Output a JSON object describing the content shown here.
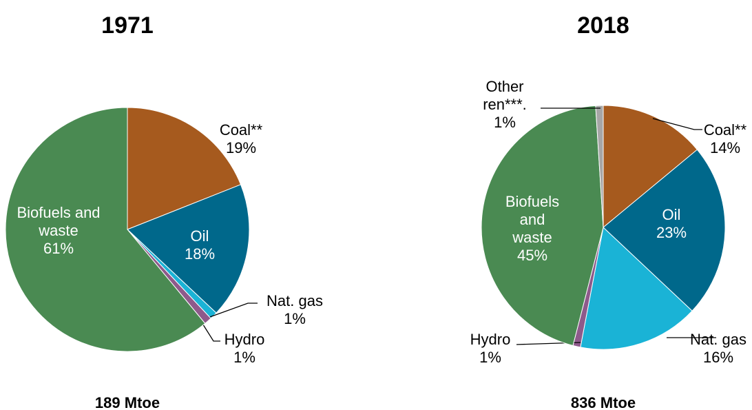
{
  "chart_data": [
    {
      "type": "pie",
      "title": "1971",
      "footer": "189 Mtoe",
      "categories": [
        "Coal**",
        "Oil",
        "Nat. gas",
        "Hydro",
        "Biofuels and waste"
      ],
      "values": [
        19,
        18,
        1,
        1,
        61
      ],
      "value_labels": [
        "19%",
        "18%",
        "1%",
        "1%",
        "61%"
      ],
      "colors": [
        "#a65a1e",
        "#00688b",
        "#1ab3d6",
        "#8e5a8b",
        "#4a8a52"
      ]
    },
    {
      "type": "pie",
      "title": "2018",
      "footer": "836 Mtoe",
      "categories": [
        "Coal**",
        "Oil",
        "Nat. gas",
        "Hydro",
        "Biofuels and waste",
        "Other ren***."
      ],
      "values": [
        14,
        23,
        16,
        1,
        45,
        1
      ],
      "value_labels": [
        "14%",
        "23%",
        "16%",
        "1%",
        "45%",
        "1%"
      ],
      "colors": [
        "#a65a1e",
        "#00688b",
        "#1ab3d6",
        "#8e5a8b",
        "#4a8a52",
        "#a6a6a6"
      ]
    }
  ]
}
